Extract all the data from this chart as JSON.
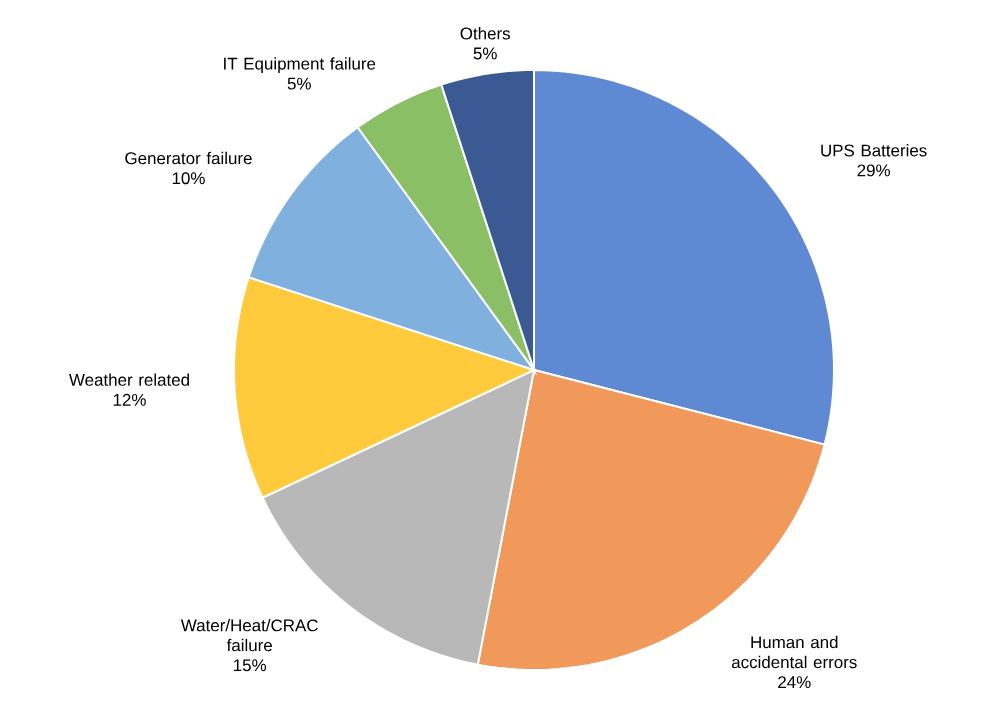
{
  "chart_data": {
    "type": "pie",
    "categories": [
      "UPS Batteries",
      "Human and accidental errors",
      "Water/Heat/CRAC failure",
      "Weather related",
      "Generator failure",
      "IT Equipment failure",
      "Others"
    ],
    "values": [
      29,
      24,
      15,
      12,
      10,
      5,
      5
    ],
    "value_labels": [
      "29%",
      "24%",
      "15%",
      "12%",
      "10%",
      "5%",
      "5%"
    ],
    "colors": [
      "#5f8ad3",
      "#f0995a",
      "#b8b8b8",
      "#ffcb3d",
      "#7fb0de",
      "#8bbf66",
      "#3b5a93"
    ]
  }
}
